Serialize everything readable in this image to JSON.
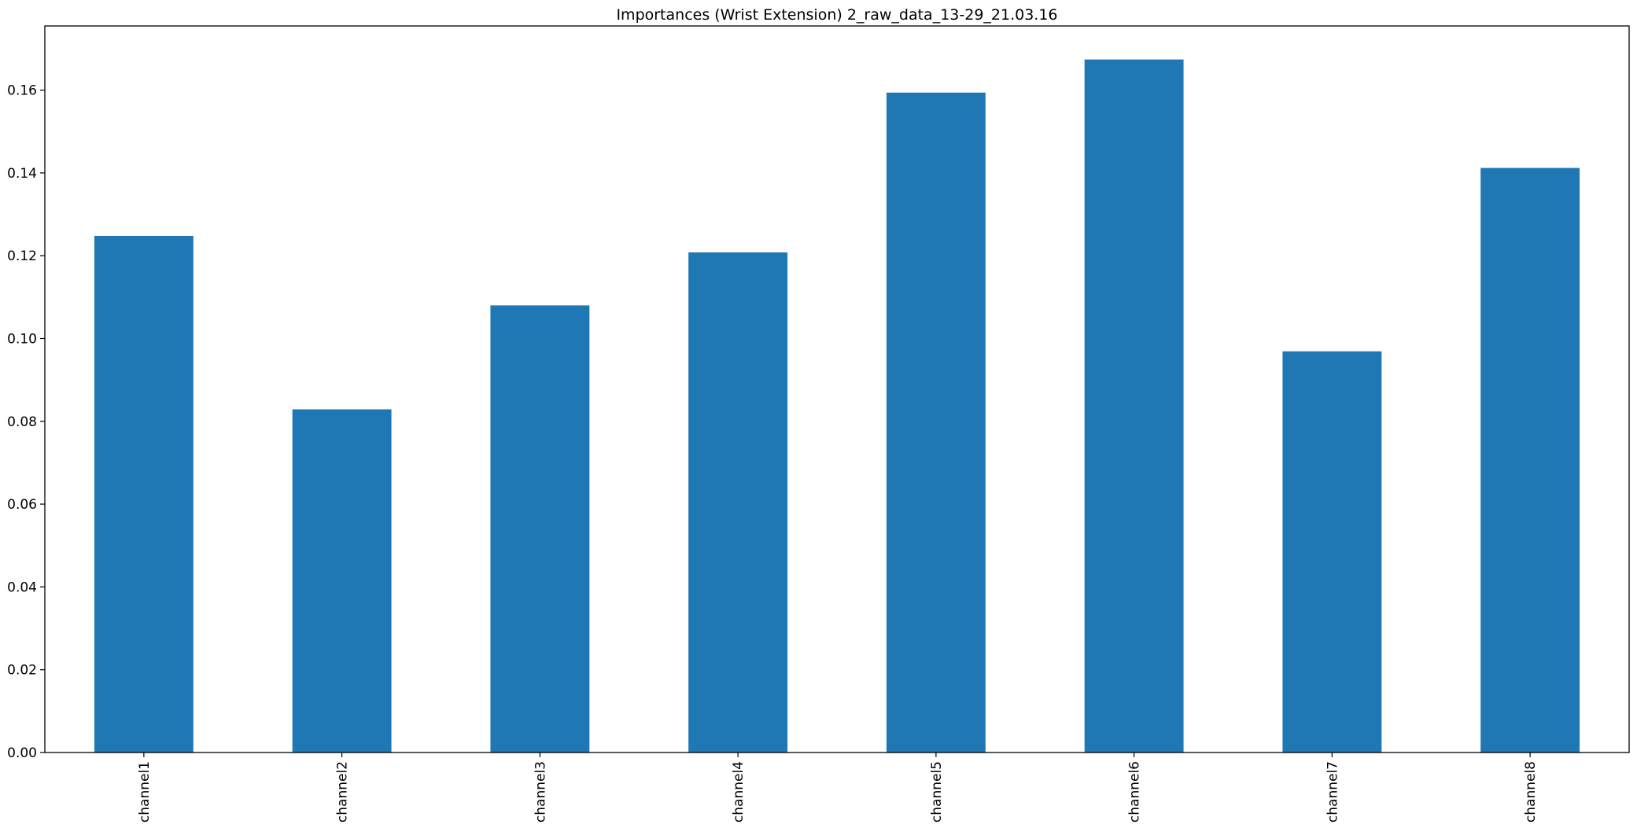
{
  "chart_data": {
    "type": "bar",
    "title": "Importances (Wrist Extension) 2_raw_data_13-29_21.03.16",
    "xlabel": "",
    "ylabel": "",
    "categories": [
      "channel1",
      "channel2",
      "channel3",
      "channel4",
      "channel5",
      "channel6",
      "channel7",
      "channel8"
    ],
    "values": [
      0.1248,
      0.0829,
      0.108,
      0.1208,
      0.1594,
      0.1674,
      0.0969,
      0.1412
    ],
    "ylim": [
      0,
      0.1755
    ],
    "yticks": [
      0.0,
      0.02,
      0.04,
      0.06,
      0.08,
      0.1,
      0.12,
      0.14,
      0.16
    ],
    "ytick_labels": [
      "0.00",
      "0.02",
      "0.04",
      "0.06",
      "0.08",
      "0.10",
      "0.12",
      "0.14",
      "0.16"
    ],
    "bar_color": "#1f77b4",
    "grid": false,
    "legend": "none"
  }
}
